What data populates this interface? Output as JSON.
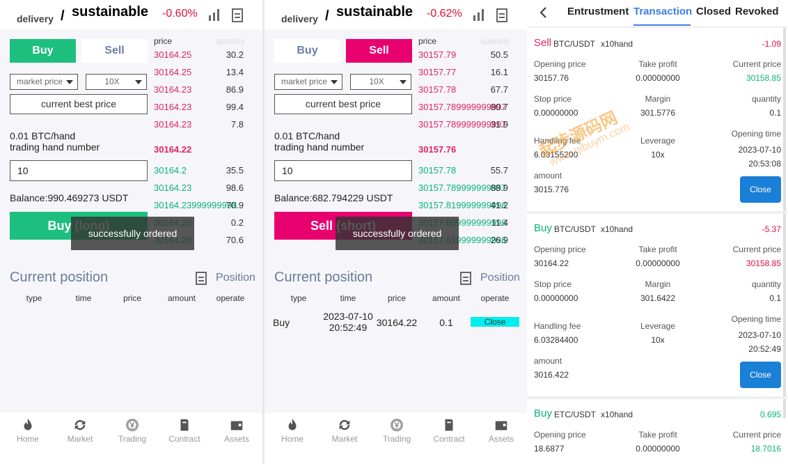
{
  "trade_panels": [
    {
      "breadcrumb": "delivery",
      "separator": "/",
      "title": "sustainable",
      "change": "-0.60%",
      "tabs": [
        "Buy",
        "Sell"
      ],
      "active_tab": 0,
      "order_type": "market price",
      "leverage": "10X",
      "price_mode": "current best price",
      "unit": "0.01 BTC/hand",
      "hand_label": "trading hand number",
      "hands": "10",
      "balance": "Balance:990.469273 USDT",
      "submit": "Buy (long)",
      "toast": "successfully ordered",
      "book_headers": [
        "price",
        "quantity"
      ],
      "asks": [
        [
          "30164.25",
          "30.2"
        ],
        [
          "30164.25",
          "13.4"
        ],
        [
          "30164.23",
          "86.9"
        ],
        [
          "30164.23",
          "99.4"
        ],
        [
          "30164.23",
          "7.8"
        ]
      ],
      "last_price": "30164.22",
      "bids": [
        [
          "30164.2",
          "35.5"
        ],
        [
          "30164.23",
          "98.6"
        ],
        [
          "30164.23999999998",
          "70.9"
        ],
        [
          "30164.26",
          "0.2"
        ],
        [
          "30164.28",
          "70.6"
        ]
      ],
      "section_title": "Current position",
      "section_link": "Position",
      "position_headers": [
        "type",
        "time",
        "price",
        "amount",
        "operate"
      ],
      "positions": []
    },
    {
      "breadcrumb": "delivery",
      "separator": "/",
      "title": "sustainable",
      "change": "-0.62%",
      "tabs": [
        "Buy",
        "Sell"
      ],
      "active_tab": 1,
      "order_type": "market price",
      "leverage": "10X",
      "price_mode": "current best price",
      "unit": "0.01 BTC/hand",
      "hand_label": "trading hand number",
      "hands": "10",
      "balance": "Balance:682.794229 USDT",
      "submit": "Sell (short)",
      "toast": "successfully ordered",
      "book_headers": [
        "price",
        "quantity"
      ],
      "asks": [
        [
          "30157.79",
          "50.5"
        ],
        [
          "30157.77",
          "16.1"
        ],
        [
          "30157.78",
          "67.7"
        ],
        [
          "30157.789999999997",
          "80.7"
        ],
        [
          "30157.789999999997",
          "31.9"
        ]
      ],
      "last_price": "30157.76",
      "bids": [
        [
          "30157.78",
          "55.7"
        ],
        [
          "30157.789999999997",
          "88.9"
        ],
        [
          "30157.819999999996",
          "41.2"
        ],
        [
          "30157.809999999998",
          "11.4"
        ],
        [
          "30157.819999999996",
          "26.9"
        ]
      ],
      "section_title": "Current position",
      "section_link": "Position",
      "position_headers": [
        "type",
        "time",
        "price",
        "amount",
        "operate"
      ],
      "positions": [
        [
          "Buy",
          "2023-07-10 20:52:49",
          "30164.22",
          "0.1",
          "Close"
        ]
      ]
    }
  ],
  "nav": [
    "Home",
    "Market",
    "Trading",
    "Contract",
    "Assets"
  ],
  "orders": {
    "tabs": [
      "Entrustment",
      "Transaction",
      "Closed",
      "Revoked"
    ],
    "active_tab": 1,
    "cards": [
      {
        "side": "Sell",
        "pair": "BTC/USDT",
        "hand": "x10hand",
        "pnl": "-1.09",
        "pnl_color": "#e0103a",
        "current_color": "#0ab27d",
        "fields": [
          [
            "Opening price",
            "30157.76"
          ],
          [
            "Take profit",
            "0.00000000"
          ],
          [
            "Current price",
            "30158.85"
          ],
          [
            "Stop price",
            "0.00000000"
          ],
          [
            "Margin",
            "301.5776"
          ],
          [
            "quantity",
            "0.1"
          ],
          [
            "Handling fee",
            "6.03155200"
          ],
          [
            "Leverage",
            "10x"
          ],
          [
            "Opening time",
            "2023-07-10 20:53:08"
          ],
          [
            "amount",
            "3015.776"
          ]
        ],
        "action": "Close"
      },
      {
        "side": "Buy",
        "pair": "BTC/USDT",
        "hand": "x10hand",
        "pnl": "-5.37",
        "pnl_color": "#e0103a",
        "current_color": "#e0103a",
        "fields": [
          [
            "Opening price",
            "30164.22"
          ],
          [
            "Take profit",
            "0.00000000"
          ],
          [
            "Current price",
            "30158.85"
          ],
          [
            "Stop price",
            "0.00000000"
          ],
          [
            "Margin",
            "301.6422"
          ],
          [
            "quantity",
            "0.1"
          ],
          [
            "Handling fee",
            "6.03284400"
          ],
          [
            "Leverage",
            "10x"
          ],
          [
            "Opening time",
            "2023-07-10 20:52:49"
          ],
          [
            "amount",
            "3016.422"
          ]
        ],
        "action": "Close"
      },
      {
        "side": "Buy",
        "pair": "ETC/USDT",
        "hand": "x10hand",
        "pnl": "0.695",
        "pnl_color": "#0ab27d",
        "current_color": "#0ab27d",
        "fields": [
          [
            "Opening price",
            "18.6877"
          ],
          [
            "Take profit",
            "0.00000000"
          ],
          [
            "Current price",
            "18.7016"
          ]
        ]
      }
    ]
  },
  "watermark": [
    "起步源码网",
    "www.qibuym.com"
  ]
}
